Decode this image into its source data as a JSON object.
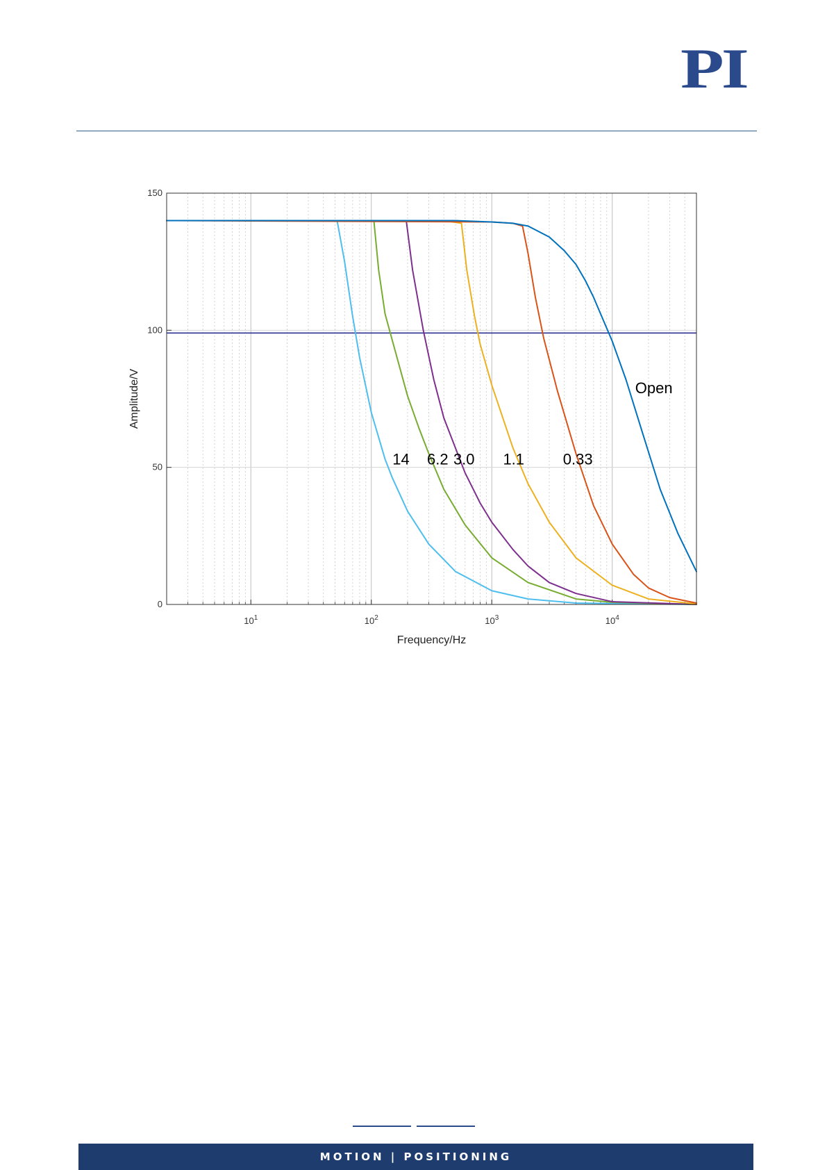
{
  "header": {
    "logo_text": "PI",
    "logo_color": "#2a4a8c",
    "rule_color": "#2f5f8a"
  },
  "footer": {
    "tagline": "MOTION | POSITIONING",
    "bar_color": "#1e3d6e"
  },
  "chart_data": {
    "type": "line",
    "title": "",
    "xlabel": "Frequency/Hz",
    "ylabel": "Amplitude/V",
    "xscale": "log",
    "xlim": [
      2,
      50000
    ],
    "ylim": [
      0,
      150
    ],
    "grid": true,
    "x_ticks": [
      {
        "base": "10",
        "exp": "1",
        "value": 10
      },
      {
        "base": "10",
        "exp": "2",
        "value": 100
      },
      {
        "base": "10",
        "exp": "3",
        "value": 1000
      },
      {
        "base": "10",
        "exp": "4",
        "value": 10000
      }
    ],
    "y_ticks": [
      {
        "label": "0",
        "value": 0
      },
      {
        "label": "50",
        "value": 50
      },
      {
        "label": "100",
        "value": 100
      },
      {
        "label": "150",
        "value": 150
      }
    ],
    "reference_line": {
      "y": 99,
      "color": "#2e3192"
    },
    "series": [
      {
        "name": "14",
        "color": "#4dbeee",
        "points": [
          [
            2,
            140
          ],
          [
            52,
            140
          ],
          [
            60,
            125
          ],
          [
            70,
            105
          ],
          [
            80,
            90
          ],
          [
            100,
            70
          ],
          [
            130,
            53
          ],
          [
            150,
            46
          ],
          [
            200,
            34
          ],
          [
            300,
            22
          ],
          [
            500,
            12
          ],
          [
            1000,
            5
          ],
          [
            2000,
            2
          ],
          [
            5000,
            0.5
          ],
          [
            50000,
            0
          ]
        ]
      },
      {
        "name": "6.2",
        "color": "#77ac30",
        "points": [
          [
            2,
            140
          ],
          [
            105,
            140
          ],
          [
            115,
            122
          ],
          [
            130,
            106
          ],
          [
            150,
            96
          ],
          [
            200,
            76
          ],
          [
            250,
            64
          ],
          [
            300,
            55
          ],
          [
            400,
            42
          ],
          [
            600,
            29
          ],
          [
            1000,
            17
          ],
          [
            2000,
            8
          ],
          [
            5000,
            2
          ],
          [
            10000,
            0.8
          ],
          [
            50000,
            0
          ]
        ]
      },
      {
        "name": "3.0",
        "color": "#7e2f8e",
        "points": [
          [
            2,
            140
          ],
          [
            195,
            140
          ],
          [
            220,
            122
          ],
          [
            270,
            100
          ],
          [
            330,
            82
          ],
          [
            400,
            68
          ],
          [
            600,
            48
          ],
          [
            800,
            37
          ],
          [
            1000,
            30
          ],
          [
            1500,
            20
          ],
          [
            2000,
            14
          ],
          [
            3000,
            8
          ],
          [
            5000,
            4
          ],
          [
            10000,
            1
          ],
          [
            50000,
            0
          ]
        ]
      },
      {
        "name": "1.1",
        "color": "#edb120",
        "points": [
          [
            2,
            140
          ],
          [
            400,
            140
          ],
          [
            560,
            139
          ],
          [
            620,
            122
          ],
          [
            720,
            105
          ],
          [
            800,
            95
          ],
          [
            1000,
            80
          ],
          [
            1500,
            57
          ],
          [
            2000,
            44
          ],
          [
            3000,
            30
          ],
          [
            5000,
            17
          ],
          [
            10000,
            7
          ],
          [
            20000,
            2
          ],
          [
            50000,
            0.2
          ]
        ]
      },
      {
        "name": "0.33",
        "color": "#d95319",
        "points": [
          [
            2,
            140
          ],
          [
            1000,
            139.5
          ],
          [
            1500,
            139
          ],
          [
            1800,
            138
          ],
          [
            2000,
            128
          ],
          [
            2300,
            112
          ],
          [
            2700,
            97
          ],
          [
            3500,
            78
          ],
          [
            5000,
            55
          ],
          [
            7000,
            36
          ],
          [
            10000,
            22
          ],
          [
            15000,
            11
          ],
          [
            20000,
            6
          ],
          [
            30000,
            2.5
          ],
          [
            50000,
            0.5
          ]
        ]
      },
      {
        "name": "Open",
        "color": "#0072bd",
        "points": [
          [
            2,
            140
          ],
          [
            500,
            140
          ],
          [
            1000,
            139.5
          ],
          [
            1500,
            139
          ],
          [
            2000,
            138
          ],
          [
            3000,
            134
          ],
          [
            4000,
            129
          ],
          [
            5000,
            124
          ],
          [
            6000,
            118
          ],
          [
            7000,
            112
          ],
          [
            8000,
            106
          ],
          [
            10000,
            96
          ],
          [
            13000,
            82
          ],
          [
            18000,
            62
          ],
          [
            25000,
            42
          ],
          [
            35000,
            26
          ],
          [
            50000,
            12
          ]
        ]
      }
    ],
    "series_label_positions": [
      {
        "series": "14",
        "x": 150,
        "y": 51
      },
      {
        "series": "6.2",
        "x": 290,
        "y": 51
      },
      {
        "series": "3.0",
        "x": 480,
        "y": 51
      },
      {
        "series": "1.1",
        "x": 1240,
        "y": 51
      },
      {
        "series": "0.33",
        "x": 3900,
        "y": 51
      },
      {
        "series": "Open",
        "x": 15500,
        "y": 77
      }
    ]
  }
}
